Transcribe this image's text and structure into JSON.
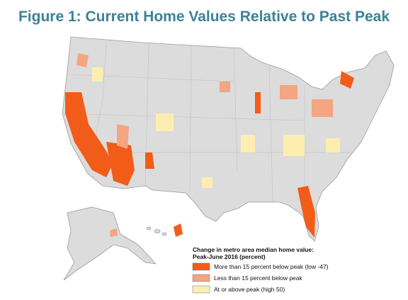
{
  "title": "Figure 1: Current Home Values Relative to Past Peak",
  "legend": {
    "title": [
      "Change in metro area median home value:",
      "Peak-June 2016 (percent)"
    ],
    "items": [
      {
        "label": "More than 15 percent below peak (low -47)",
        "color": "#f25c19"
      },
      {
        "label": "Less than 15 percent below peak",
        "color": "#f4a582"
      },
      {
        "label": "At or above peak (high 50)",
        "color": "#fdeeb0"
      }
    ]
  }
}
